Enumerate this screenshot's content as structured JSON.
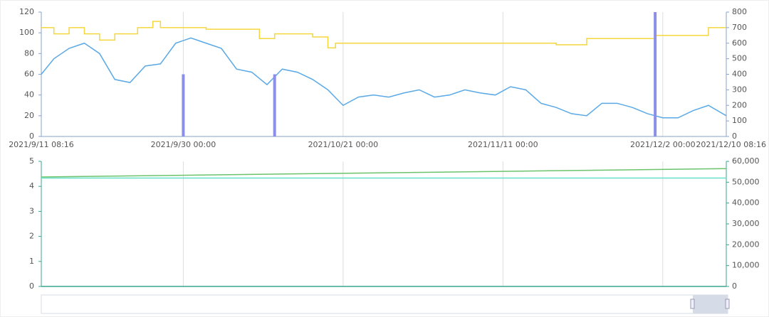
{
  "chart_data": [
    {
      "type": "line",
      "xlim": [
        "2021-09-11T08:16",
        "2021-12-10T08:16"
      ],
      "xticks": [
        {
          "value": "2021-09-11T08:16",
          "label": "2021/9/11 08:16"
        },
        {
          "value": "2021-09-30T00:00",
          "label": "2021/9/30 00:00"
        },
        {
          "value": "2021-10-21T00:00",
          "label": "2021/10/21 00:00"
        },
        {
          "value": "2021-11-11T00:00",
          "label": "2021/11/11 00:00"
        },
        {
          "value": "2021-12-02T00:00",
          "label": "2021/12/2 00:00"
        },
        {
          "value": "2021-12-10T08:16",
          "label": "2021/12/10 08:16"
        }
      ],
      "ylim": [
        0,
        120
      ],
      "yticks": [
        0,
        20,
        40,
        60,
        80,
        100,
        120
      ],
      "y2lim": [
        0,
        800
      ],
      "y2ticks": [
        0,
        100,
        200,
        300,
        400,
        500,
        600,
        700,
        800
      ],
      "series": [
        {
          "kind": "line",
          "color": "#5aa9e6",
          "x": [
            "2021-09-11T08:16",
            "2021-09-13T00:00",
            "2021-09-15T00:00",
            "2021-09-17T00:00",
            "2021-09-19T00:00",
            "2021-09-21T00:00",
            "2021-09-23T00:00",
            "2021-09-25T00:00",
            "2021-09-27T00:00",
            "2021-09-29T00:00",
            "2021-10-01T00:00",
            "2021-10-03T00:00",
            "2021-10-05T00:00",
            "2021-10-07T00:00",
            "2021-10-09T00:00",
            "2021-10-11T00:00",
            "2021-10-13T00:00",
            "2021-10-15T00:00",
            "2021-10-17T00:00",
            "2021-10-19T00:00",
            "2021-10-21T00:00",
            "2021-10-23T00:00",
            "2021-10-25T00:00",
            "2021-10-27T00:00",
            "2021-10-29T00:00",
            "2021-10-31T00:00",
            "2021-11-02T00:00",
            "2021-11-04T00:00",
            "2021-11-06T00:00",
            "2021-11-08T00:00",
            "2021-11-10T00:00",
            "2021-11-12T00:00",
            "2021-11-14T00:00",
            "2021-11-16T00:00",
            "2021-11-18T00:00",
            "2021-11-20T00:00",
            "2021-11-22T00:00",
            "2021-11-24T00:00",
            "2021-11-26T00:00",
            "2021-11-28T00:00",
            "2021-11-30T00:00",
            "2021-12-02T00:00",
            "2021-12-04T00:00",
            "2021-12-06T00:00",
            "2021-12-08T00:00",
            "2021-12-10T08:16"
          ],
          "values": [
            60,
            75,
            85,
            90,
            80,
            55,
            52,
            68,
            70,
            90,
            95,
            90,
            85,
            65,
            62,
            50,
            65,
            62,
            55,
            45,
            30,
            38,
            40,
            38,
            42,
            45,
            38,
            40,
            45,
            42,
            40,
            48,
            45,
            32,
            28,
            22,
            20,
            32,
            32,
            28,
            22,
            18,
            18,
            25,
            30,
            20
          ]
        },
        {
          "kind": "step",
          "axis": "y2",
          "color": "#f5d63d",
          "x": [
            "2021-09-11T08:16",
            "2021-09-13T00:00",
            "2021-09-15T00:00",
            "2021-09-17T00:00",
            "2021-09-19T00:00",
            "2021-09-21T00:00",
            "2021-09-24T00:00",
            "2021-09-26T00:00",
            "2021-09-27T00:00",
            "2021-10-03T00:00",
            "2021-10-10T00:00",
            "2021-10-12T00:00",
            "2021-10-17T00:00",
            "2021-10-19T00:00",
            "2021-10-20T00:00",
            "2021-11-18T00:00",
            "2021-11-22T00:00",
            "2021-12-01T00:00",
            "2021-12-08T00:00",
            "2021-12-10T08:16"
          ],
          "values": [
            700,
            660,
            700,
            660,
            620,
            660,
            700,
            740,
            700,
            690,
            630,
            660,
            640,
            570,
            600,
            590,
            630,
            650,
            700,
            700
          ]
        },
        {
          "kind": "bar",
          "axis": "y2",
          "color": "#8b8fe8",
          "x": [
            "2021-09-30T00:00",
            "2021-10-12T00:00",
            "2021-12-01T00:00"
          ],
          "values": [
            400,
            400,
            800
          ]
        }
      ]
    },
    {
      "type": "line",
      "xlim": [
        "2021-09-11T08:16",
        "2021-12-10T08:16"
      ],
      "ylim": [
        0,
        5
      ],
      "yticks": [
        0,
        1,
        2,
        3,
        4,
        5
      ],
      "y2lim": [
        0,
        60000
      ],
      "y2ticks": [
        0,
        {
          "value": 10000,
          "label": "10,000"
        },
        {
          "value": 20000,
          "label": "20,000"
        },
        {
          "value": 30000,
          "label": "30,000"
        },
        {
          "value": 40000,
          "label": "40,000"
        },
        {
          "value": 50000,
          "label": "50,000"
        },
        {
          "value": 60000,
          "label": "60,000"
        }
      ],
      "series": [
        {
          "kind": "line",
          "axis": "y2",
          "color": "#6cc36c",
          "x": [
            "2021-09-11T08:16",
            "2021-12-10T08:16"
          ],
          "values": [
            52500,
            56500
          ]
        },
        {
          "kind": "line",
          "axis": "y2",
          "color": "#66e0c8",
          "x": [
            "2021-09-11T08:16",
            "2021-12-10T08:16"
          ],
          "values": [
            52000,
            52000
          ]
        },
        {
          "kind": "line",
          "color": "#3aa58f",
          "x": [
            "2021-09-11T08:16",
            "2021-12-10T08:16"
          ],
          "values": [
            0,
            0
          ]
        }
      ]
    }
  ]
}
